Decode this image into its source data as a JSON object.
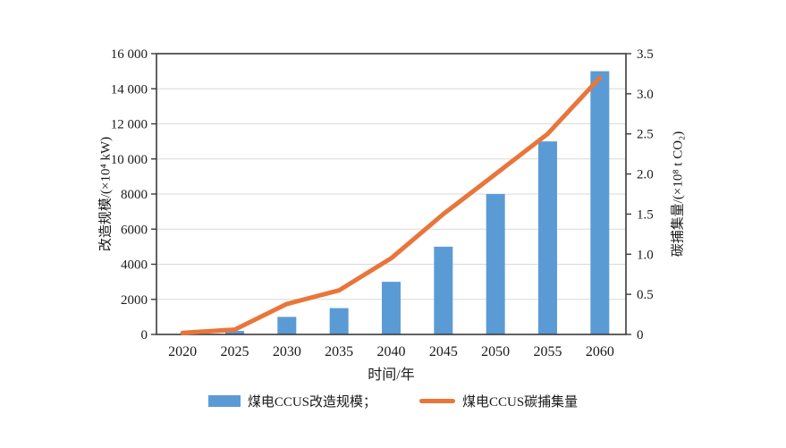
{
  "chart_data": {
    "type": "bar+line combo",
    "categories": [
      "2020",
      "2025",
      "2030",
      "2035",
      "2040",
      "2045",
      "2050",
      "2055",
      "2060"
    ],
    "series": [
      {
        "name": "煤电CCUS改造规模",
        "type": "bar",
        "axis": "left",
        "values": [
          0,
          200,
          1000,
          1500,
          3000,
          5000,
          8000,
          11000,
          15000
        ]
      },
      {
        "name": "煤电CCUS碳捕集量",
        "type": "line",
        "axis": "right",
        "values": [
          0.02,
          0.06,
          0.38,
          0.55,
          0.95,
          1.5,
          2.0,
          2.5,
          3.2
        ]
      }
    ],
    "xlabel": "时间/年",
    "left_axis": {
      "label": "改造规模/(×10⁴ kW)",
      "min": 0,
      "max": 16000,
      "ticks": [
        {
          "value": 0,
          "label": "0"
        },
        {
          "value": 2000,
          "label": "2000"
        },
        {
          "value": 4000,
          "label": "4000"
        },
        {
          "value": 6000,
          "label": "6000"
        },
        {
          "value": 8000,
          "label": "8000"
        },
        {
          "value": 10000,
          "label": "10 000"
        },
        {
          "value": 12000,
          "label": "12 000"
        },
        {
          "value": 14000,
          "label": "14 000"
        },
        {
          "value": 16000,
          "label": "16 000"
        }
      ]
    },
    "right_axis": {
      "label": "碳捕集量/(×10⁸ t CO₂)",
      "min": 0,
      "max": 3.5,
      "ticks": [
        {
          "value": 0,
          "label": "0"
        },
        {
          "value": 0.5,
          "label": "0.5"
        },
        {
          "value": 1.0,
          "label": "1.0"
        },
        {
          "value": 1.5,
          "label": "1.5"
        },
        {
          "value": 2.0,
          "label": "2.0"
        },
        {
          "value": 2.5,
          "label": "2.5"
        },
        {
          "value": 3.0,
          "label": "3.0"
        },
        {
          "value": 3.5,
          "label": "3.5"
        }
      ]
    },
    "grid": true,
    "legend_position": "bottom"
  },
  "legend": {
    "bar_label": "煤电CCUS改造规模；",
    "line_label": "煤电CCUS碳捕集量"
  },
  "colors": {
    "bar": "#5B9BD5",
    "line": "#E8763B",
    "grid": "#D9D9D9",
    "axis_border": "#3B3B3B",
    "text": "#1a1a1a"
  }
}
